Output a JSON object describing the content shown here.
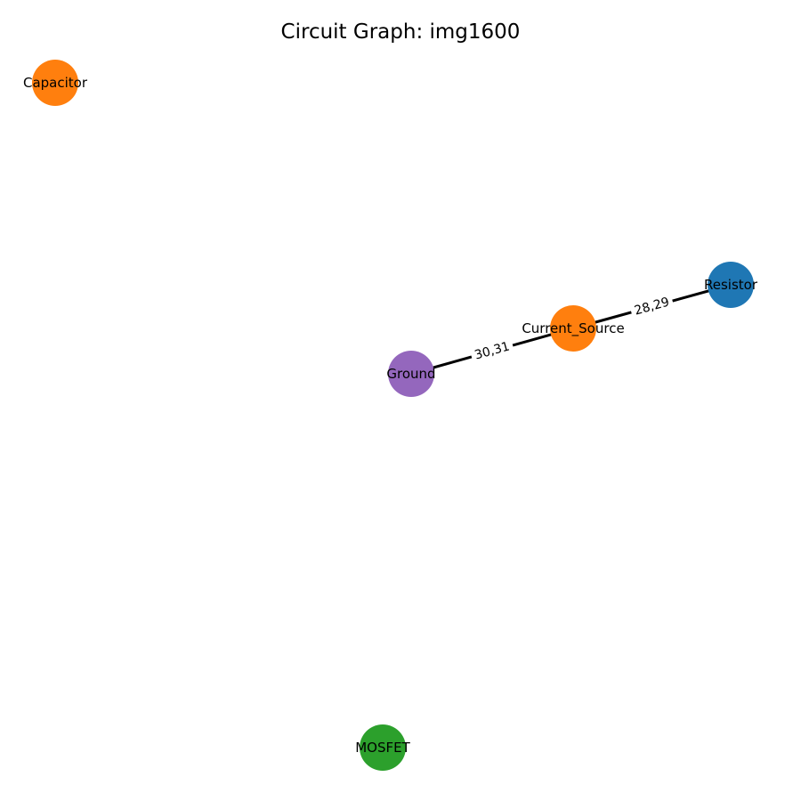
{
  "title": "Circuit Graph: img1600",
  "nodes": [
    {
      "id": "capacitor",
      "label": "Capacitor",
      "color": "#ff7f0e"
    },
    {
      "id": "resistor",
      "label": "Resistor",
      "color": "#1f77b4"
    },
    {
      "id": "current_source",
      "label": "Current_Source",
      "color": "#ff7f0e"
    },
    {
      "id": "ground",
      "label": "Ground",
      "color": "#9467bd"
    },
    {
      "id": "mosfet",
      "label": "MOSFET",
      "color": "#2ca02c"
    }
  ],
  "edges": [
    {
      "id": "cs-resistor",
      "from": "current_source",
      "to": "resistor",
      "label": "28,29"
    },
    {
      "id": "ground-cs",
      "from": "ground",
      "to": "current_source",
      "label": "30,31"
    }
  ]
}
